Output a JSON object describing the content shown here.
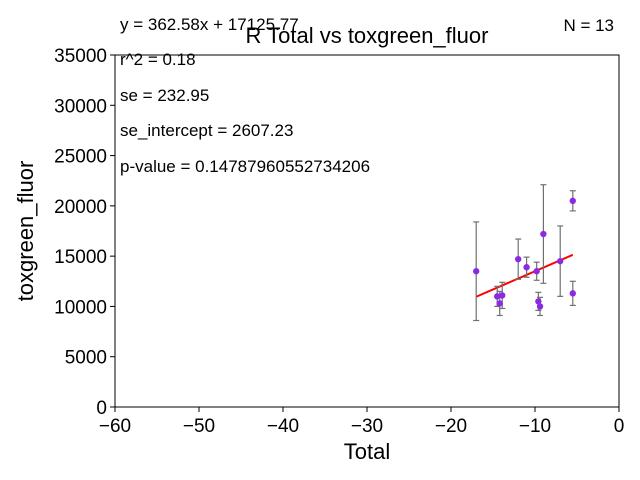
{
  "chart_data": {
    "type": "scatter",
    "title": "R Total vs toxgreen_fluor",
    "xlabel": "Total",
    "ylabel": "toxgreen_fluor",
    "xlim": [
      -60,
      0
    ],
    "ylim": [
      0,
      35000
    ],
    "xticks": [
      -60,
      -50,
      -40,
      -30,
      -20,
      -10,
      0
    ],
    "yticks": [
      0,
      5000,
      10000,
      15000,
      20000,
      25000,
      30000,
      35000
    ],
    "grid": false,
    "stats": {
      "equation": "y = 362.58x + 17125.77",
      "r2": "r^2 = 0.18",
      "se": "se = 232.95",
      "se_intercept": "se_intercept = 2607.23",
      "p_value": "p-value = 0.14787960552734206",
      "n": "N = 13"
    },
    "point_color": "#8a2be2",
    "fit_color": "#ff0000",
    "errorbar_color": "#707070",
    "fit_line": {
      "x": [
        -17,
        -5.5
      ],
      "slope": 362.58,
      "intercept": 17125.77
    },
    "points": [
      {
        "x": -17.0,
        "y": 13500,
        "err": 4900
      },
      {
        "x": -14.5,
        "y": 11000,
        "err": 1000
      },
      {
        "x": -14.2,
        "y": 10300,
        "err": 1200
      },
      {
        "x": -13.9,
        "y": 11100,
        "err": 1300
      },
      {
        "x": -12.0,
        "y": 14700,
        "err": 2000
      },
      {
        "x": -11.0,
        "y": 13900,
        "err": 1000
      },
      {
        "x": -9.8,
        "y": 13500,
        "err": 900
      },
      {
        "x": -9.6,
        "y": 10500,
        "err": 900
      },
      {
        "x": -9.4,
        "y": 10000,
        "err": 900
      },
      {
        "x": -9.0,
        "y": 17200,
        "err": 4900
      },
      {
        "x": -7.0,
        "y": 14500,
        "err": 3500
      },
      {
        "x": -5.5,
        "y": 20500,
        "err": 1000
      },
      {
        "x": -5.5,
        "y": 11300,
        "err": 1200
      }
    ]
  }
}
